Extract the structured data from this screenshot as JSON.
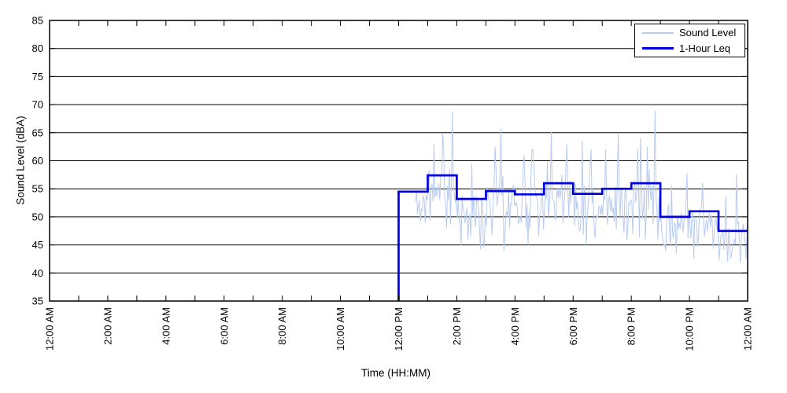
{
  "chart_data": {
    "type": "line",
    "title": "",
    "xlabel": "Time (HH:MM)",
    "ylabel": "Sound Level (dBA)",
    "xlim_hours": [
      0,
      24
    ],
    "ylim": [
      35,
      85
    ],
    "ytick_step": 5,
    "ytick_labels": [
      "35",
      "40",
      "45",
      "50",
      "55",
      "60",
      "65",
      "70",
      "75",
      "80",
      "85"
    ],
    "x_major_tick_hours": 2,
    "x_minor_tick_hours": 1,
    "xtick_labels": [
      "12:00 AM",
      "2:00 AM",
      "4:00 AM",
      "6:00 AM",
      "8:00 AM",
      "10:00 AM",
      "12:00 PM",
      "2:00 PM",
      "4:00 PM",
      "6:00 PM",
      "8:00 PM",
      "10:00 PM",
      "12:00 AM"
    ],
    "grid": "horizontal-solid",
    "legend": {
      "position": "top-right",
      "entries": [
        {
          "label": "Sound Level",
          "color": "#b9cbee",
          "line_width": 1.5
        },
        {
          "label": "1-Hour Leq",
          "color": "#0000dd",
          "line_width": 3.2
        }
      ]
    },
    "series": [
      {
        "name": "1-Hour Leq",
        "style": "stairs",
        "color": "#0000dd",
        "line_width": 2.7,
        "starts_at_axis_bottom": true,
        "steps": [
          {
            "hour_label": "12:00 PM",
            "from": 12,
            "to": 13,
            "leq_dba": 54.5
          },
          {
            "hour_label": "1:00 PM",
            "from": 13,
            "to": 14,
            "leq_dba": 57.4
          },
          {
            "hour_label": "2:00 PM",
            "from": 14,
            "to": 15,
            "leq_dba": 53.2
          },
          {
            "hour_label": "3:00 PM",
            "from": 15,
            "to": 16,
            "leq_dba": 54.6
          },
          {
            "hour_label": "4:00 PM",
            "from": 16,
            "to": 17,
            "leq_dba": 54.0
          },
          {
            "hour_label": "5:00 PM",
            "from": 17,
            "to": 18,
            "leq_dba": 56.0
          },
          {
            "hour_label": "6:00 PM",
            "from": 18,
            "to": 19,
            "leq_dba": 54.1
          },
          {
            "hour_label": "7:00 PM",
            "from": 19,
            "to": 20,
            "leq_dba": 55.0
          },
          {
            "hour_label": "8:00 PM",
            "from": 20,
            "to": 21,
            "leq_dba": 56.0
          },
          {
            "hour_label": "9:00 PM",
            "from": 21,
            "to": 22,
            "leq_dba": 50.0
          },
          {
            "hour_label": "10:00 PM",
            "from": 22,
            "to": 23,
            "leq_dba": 51.0
          },
          {
            "hour_label": "11:00 PM",
            "from": 23,
            "to": 24,
            "leq_dba": 47.5
          }
        ]
      },
      {
        "name": "Sound Level",
        "style": "noisy-line",
        "color": "#b9cbee",
        "line_width": 1,
        "t_start": 12.583,
        "t_end": 24,
        "sample_minutes": 2,
        "seed": 11,
        "profile": [
          {
            "from": 12.583,
            "to": 13,
            "base": 52.5,
            "spread": 3.0
          },
          {
            "from": 13,
            "to": 14,
            "base": 54.5,
            "spread": 3.4
          },
          {
            "from": 14,
            "to": 15,
            "base": 51.0,
            "spread": 3.0
          },
          {
            "from": 15,
            "to": 16,
            "base": 52.5,
            "spread": 3.4
          },
          {
            "from": 16,
            "to": 17,
            "base": 52.0,
            "spread": 3.2
          },
          {
            "from": 17,
            "to": 18,
            "base": 53.5,
            "spread": 3.2
          },
          {
            "from": 18,
            "to": 19,
            "base": 52.0,
            "spread": 3.2
          },
          {
            "from": 19,
            "to": 20,
            "base": 52.5,
            "spread": 3.4
          },
          {
            "from": 20,
            "to": 21,
            "base": 53.0,
            "spread": 3.4
          },
          {
            "from": 21,
            "to": 22,
            "base": 48.5,
            "spread": 2.8
          },
          {
            "from": 22,
            "to": 23,
            "base": 49.0,
            "spread": 2.8
          },
          {
            "from": 23,
            "to": 24,
            "base": 45.5,
            "spread": 2.3
          }
        ],
        "spikes": [
          [
            13.2,
            63.0
          ],
          [
            13.55,
            62.0
          ],
          [
            13.85,
            68.8
          ],
          [
            14.5,
            59.5
          ],
          [
            15.33,
            62.5
          ],
          [
            15.52,
            65.8
          ],
          [
            16.3,
            61.0
          ],
          [
            16.62,
            62.0
          ],
          [
            17.25,
            65.2
          ],
          [
            17.77,
            63.0
          ],
          [
            18.3,
            63.5
          ],
          [
            18.62,
            62.0
          ],
          [
            19.1,
            62.0
          ],
          [
            19.55,
            65.0
          ],
          [
            20.3,
            64.0
          ],
          [
            20.55,
            62.5
          ],
          [
            20.83,
            69.0
          ],
          [
            21.92,
            57.8
          ],
          [
            22.45,
            56.0
          ],
          [
            23.6,
            57.6
          ]
        ],
        "dips": [
          [
            14.9,
            44.5
          ],
          [
            15.62,
            44.0
          ],
          [
            16.45,
            45.0
          ],
          [
            18.45,
            45.0
          ],
          [
            20.9,
            46.0
          ],
          [
            21.55,
            43.5
          ],
          [
            22.8,
            44.5
          ],
          [
            23.3,
            42.0
          ],
          [
            23.75,
            41.8
          ],
          [
            23.95,
            42.5
          ]
        ]
      }
    ],
    "axis_color": "#000000",
    "grid_color": "#000000",
    "background": "#ffffff"
  }
}
